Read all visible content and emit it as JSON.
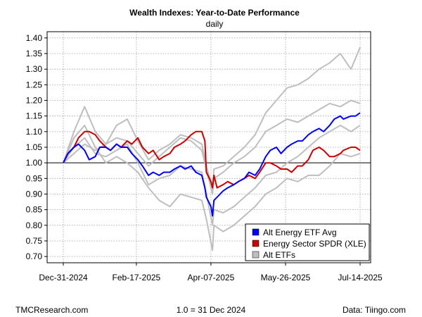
{
  "chart_data": {
    "type": "line",
    "title": "Wealth Indexes: Year-to-Date Performance",
    "subtitle": "daily",
    "x_tick_labels": [
      "Dec-31-2024",
      "Feb-17-2025",
      "Apr-07-2025",
      "May-26-2025",
      "Jul-14-2025"
    ],
    "x_ticks": [
      "2024-12-31",
      "2025-02-17",
      "2025-04-07",
      "2025-05-26",
      "2025-07-14"
    ],
    "xlim": [
      "2024-12-31",
      "2025-07-14"
    ],
    "y_ticks": [
      0.7,
      0.75,
      0.8,
      0.85,
      0.9,
      0.95,
      1.0,
      1.05,
      1.1,
      1.15,
      1.2,
      1.25,
      1.3,
      1.35,
      1.4
    ],
    "y_tick_labels": [
      "0.70",
      "0.75",
      "0.80",
      "0.85",
      "0.90",
      "0.95",
      "1.00",
      "1.05",
      "1.10",
      "1.15",
      "1.20",
      "1.25",
      "1.30",
      "1.35",
      "1.40"
    ],
    "ylim": [
      0.68,
      1.42
    ],
    "reference_line": 1.0,
    "grid": true,
    "legend_position": "bottom-right",
    "legend": [
      "Alt Energy ETF Avg",
      "Energy Sector SPDR (XLE)",
      "Alt ETFs"
    ],
    "series": [
      {
        "name": "Alt ETFs",
        "color": "#bebebe",
        "values": [
          [
            [
              "2024-12-31",
              1.0
            ],
            [
              "2025-01-07",
              1.08
            ],
            [
              "2025-01-14",
              1.12
            ],
            [
              "2025-01-21",
              1.05
            ],
            [
              "2025-01-28",
              1.0
            ],
            [
              "2025-02-04",
              1.02
            ],
            [
              "2025-02-11",
              1.0
            ],
            [
              "2025-02-18",
              0.97
            ],
            [
              "2025-02-25",
              0.92
            ],
            [
              "2025-03-04",
              0.88
            ],
            [
              "2025-03-11",
              0.86
            ],
            [
              "2025-03-18",
              0.9
            ],
            [
              "2025-03-25",
              0.89
            ],
            [
              "2025-04-01",
              0.88
            ],
            [
              "2025-04-04",
              0.82
            ],
            [
              "2025-04-08",
              0.72
            ],
            [
              "2025-04-09",
              0.8
            ],
            [
              "2025-04-15",
              0.78
            ],
            [
              "2025-04-22",
              0.8
            ],
            [
              "2025-04-29",
              0.83
            ],
            [
              "2025-05-06",
              0.86
            ],
            [
              "2025-05-13",
              0.9
            ],
            [
              "2025-05-20",
              0.92
            ],
            [
              "2025-05-27",
              0.95
            ],
            [
              "2025-06-03",
              0.94
            ],
            [
              "2025-06-10",
              0.96
            ],
            [
              "2025-06-17",
              0.96
            ],
            [
              "2025-06-24",
              0.99
            ],
            [
              "2025-07-01",
              1.03
            ],
            [
              "2025-07-08",
              1.02
            ],
            [
              "2025-07-14",
              1.03
            ]
          ],
          [
            [
              "2024-12-31",
              1.0
            ],
            [
              "2025-01-07",
              1.05
            ],
            [
              "2025-01-14",
              1.08
            ],
            [
              "2025-01-21",
              1.03
            ],
            [
              "2025-01-28",
              1.02
            ],
            [
              "2025-02-04",
              1.04
            ],
            [
              "2025-02-11",
              1.06
            ],
            [
              "2025-02-18",
              1.0
            ],
            [
              "2025-02-25",
              0.93
            ],
            [
              "2025-03-04",
              0.95
            ],
            [
              "2025-03-11",
              0.96
            ],
            [
              "2025-03-18",
              0.99
            ],
            [
              "2025-03-25",
              0.98
            ],
            [
              "2025-04-01",
              0.97
            ],
            [
              "2025-04-04",
              0.9
            ],
            [
              "2025-04-08",
              0.8
            ],
            [
              "2025-04-09",
              0.85
            ],
            [
              "2025-04-15",
              0.84
            ],
            [
              "2025-04-22",
              0.86
            ],
            [
              "2025-04-29",
              0.89
            ],
            [
              "2025-05-06",
              0.92
            ],
            [
              "2025-05-13",
              0.96
            ],
            [
              "2025-05-20",
              0.97
            ],
            [
              "2025-05-27",
              1.0
            ],
            [
              "2025-06-03",
              1.02
            ],
            [
              "2025-06-10",
              1.05
            ],
            [
              "2025-06-17",
              1.08
            ],
            [
              "2025-06-24",
              1.1
            ],
            [
              "2025-07-01",
              1.12
            ],
            [
              "2025-07-08",
              1.1
            ],
            [
              "2025-07-14",
              1.12
            ]
          ],
          [
            [
              "2024-12-31",
              1.0
            ],
            [
              "2025-01-07",
              1.03
            ],
            [
              "2025-01-14",
              1.06
            ],
            [
              "2025-01-21",
              1.04
            ],
            [
              "2025-01-28",
              1.06
            ],
            [
              "2025-02-04",
              1.08
            ],
            [
              "2025-02-11",
              1.07
            ],
            [
              "2025-02-18",
              1.03
            ],
            [
              "2025-02-25",
              0.99
            ],
            [
              "2025-03-04",
              1.02
            ],
            [
              "2025-03-11",
              1.05
            ],
            [
              "2025-03-18",
              1.08
            ],
            [
              "2025-03-25",
              1.07
            ],
            [
              "2025-04-01",
              1.04
            ],
            [
              "2025-04-04",
              0.98
            ],
            [
              "2025-04-08",
              0.9
            ],
            [
              "2025-04-09",
              0.95
            ],
            [
              "2025-04-15",
              0.97
            ],
            [
              "2025-04-22",
              1.0
            ],
            [
              "2025-04-29",
              1.02
            ],
            [
              "2025-05-06",
              1.05
            ],
            [
              "2025-05-13",
              1.1
            ],
            [
              "2025-05-20",
              1.12
            ],
            [
              "2025-05-27",
              1.14
            ],
            [
              "2025-06-03",
              1.13
            ],
            [
              "2025-06-10",
              1.15
            ],
            [
              "2025-06-17",
              1.17
            ],
            [
              "2025-06-24",
              1.19
            ],
            [
              "2025-07-01",
              1.18
            ],
            [
              "2025-07-08",
              1.2
            ],
            [
              "2025-07-14",
              1.19
            ]
          ],
          [
            [
              "2024-12-31",
              1.0
            ],
            [
              "2025-01-07",
              1.1
            ],
            [
              "2025-01-14",
              1.18
            ],
            [
              "2025-01-21",
              1.1
            ],
            [
              "2025-01-28",
              1.06
            ],
            [
              "2025-02-04",
              1.12
            ],
            [
              "2025-02-11",
              1.14
            ],
            [
              "2025-02-18",
              1.07
            ],
            [
              "2025-02-25",
              1.01
            ],
            [
              "2025-03-04",
              1.04
            ],
            [
              "2025-03-11",
              1.06
            ],
            [
              "2025-03-18",
              1.09
            ],
            [
              "2025-03-25",
              1.08
            ],
            [
              "2025-04-01",
              1.06
            ],
            [
              "2025-04-04",
              0.99
            ],
            [
              "2025-04-08",
              0.92
            ],
            [
              "2025-04-09",
              0.98
            ],
            [
              "2025-04-15",
              0.99
            ],
            [
              "2025-04-22",
              1.02
            ],
            [
              "2025-04-29",
              1.05
            ],
            [
              "2025-05-06",
              1.09
            ],
            [
              "2025-05-13",
              1.16
            ],
            [
              "2025-05-20",
              1.2
            ],
            [
              "2025-05-27",
              1.24
            ],
            [
              "2025-06-03",
              1.25
            ],
            [
              "2025-06-10",
              1.27
            ],
            [
              "2025-06-17",
              1.3
            ],
            [
              "2025-06-24",
              1.32
            ],
            [
              "2025-07-01",
              1.35
            ],
            [
              "2025-07-08",
              1.3
            ],
            [
              "2025-07-14",
              1.37
            ]
          ]
        ]
      },
      {
        "name": "Alt Energy ETF Avg",
        "color": "#0000ff",
        "values": [
          [
            "2024-12-31",
            1.0
          ],
          [
            "2025-01-03",
            1.03
          ],
          [
            "2025-01-07",
            1.05
          ],
          [
            "2025-01-10",
            1.06
          ],
          [
            "2025-01-14",
            1.04
          ],
          [
            "2025-01-17",
            1.01
          ],
          [
            "2025-01-21",
            1.02
          ],
          [
            "2025-01-24",
            1.05
          ],
          [
            "2025-01-28",
            1.05
          ],
          [
            "2025-01-31",
            1.04
          ],
          [
            "2025-02-04",
            1.06
          ],
          [
            "2025-02-07",
            1.05
          ],
          [
            "2025-02-11",
            1.05
          ],
          [
            "2025-02-14",
            1.03
          ],
          [
            "2025-02-18",
            1.01
          ],
          [
            "2025-02-21",
            0.99
          ],
          [
            "2025-02-25",
            0.96
          ],
          [
            "2025-02-28",
            0.97
          ],
          [
            "2025-03-04",
            0.96
          ],
          [
            "2025-03-07",
            0.97
          ],
          [
            "2025-03-11",
            0.97
          ],
          [
            "2025-03-14",
            0.98
          ],
          [
            "2025-03-18",
            0.99
          ],
          [
            "2025-03-21",
            0.98
          ],
          [
            "2025-03-25",
            0.99
          ],
          [
            "2025-03-28",
            0.97
          ],
          [
            "2025-04-01",
            0.96
          ],
          [
            "2025-04-03",
            0.92
          ],
          [
            "2025-04-04",
            0.89
          ],
          [
            "2025-04-07",
            0.86
          ],
          [
            "2025-04-08",
            0.83
          ],
          [
            "2025-04-09",
            0.88
          ],
          [
            "2025-04-11",
            0.89
          ],
          [
            "2025-04-15",
            0.91
          ],
          [
            "2025-04-18",
            0.92
          ],
          [
            "2025-04-22",
            0.93
          ],
          [
            "2025-04-25",
            0.94
          ],
          [
            "2025-04-29",
            0.95
          ],
          [
            "2025-05-02",
            0.97
          ],
          [
            "2025-05-06",
            0.96
          ],
          [
            "2025-05-09",
            0.98
          ],
          [
            "2025-05-13",
            1.02
          ],
          [
            "2025-05-16",
            1.04
          ],
          [
            "2025-05-20",
            1.05
          ],
          [
            "2025-05-23",
            1.03
          ],
          [
            "2025-05-27",
            1.05
          ],
          [
            "2025-05-30",
            1.06
          ],
          [
            "2025-06-03",
            1.07
          ],
          [
            "2025-06-06",
            1.07
          ],
          [
            "2025-06-10",
            1.09
          ],
          [
            "2025-06-13",
            1.1
          ],
          [
            "2025-06-17",
            1.11
          ],
          [
            "2025-06-20",
            1.1
          ],
          [
            "2025-06-24",
            1.12
          ],
          [
            "2025-06-27",
            1.14
          ],
          [
            "2025-07-01",
            1.15
          ],
          [
            "2025-07-03",
            1.14
          ],
          [
            "2025-07-08",
            1.15
          ],
          [
            "2025-07-11",
            1.15
          ],
          [
            "2025-07-14",
            1.16
          ]
        ]
      },
      {
        "name": "Energy Sector SPDR (XLE)",
        "color": "#cc0000",
        "values": [
          [
            "2024-12-31",
            1.0
          ],
          [
            "2025-01-03",
            1.03
          ],
          [
            "2025-01-07",
            1.05
          ],
          [
            "2025-01-10",
            1.08
          ],
          [
            "2025-01-14",
            1.1
          ],
          [
            "2025-01-17",
            1.1
          ],
          [
            "2025-01-21",
            1.09
          ],
          [
            "2025-01-24",
            1.07
          ],
          [
            "2025-01-28",
            1.05
          ],
          [
            "2025-01-31",
            1.04
          ],
          [
            "2025-02-04",
            1.06
          ],
          [
            "2025-02-07",
            1.05
          ],
          [
            "2025-02-11",
            1.07
          ],
          [
            "2025-02-14",
            1.06
          ],
          [
            "2025-02-18",
            1.08
          ],
          [
            "2025-02-21",
            1.05
          ],
          [
            "2025-02-25",
            1.03
          ],
          [
            "2025-02-28",
            1.04
          ],
          [
            "2025-03-04",
            1.01
          ],
          [
            "2025-03-07",
            1.02
          ],
          [
            "2025-03-11",
            1.03
          ],
          [
            "2025-03-14",
            1.05
          ],
          [
            "2025-03-18",
            1.06
          ],
          [
            "2025-03-21",
            1.07
          ],
          [
            "2025-03-25",
            1.09
          ],
          [
            "2025-03-28",
            1.1
          ],
          [
            "2025-04-01",
            1.1
          ],
          [
            "2025-04-03",
            1.07
          ],
          [
            "2025-04-04",
            0.97
          ],
          [
            "2025-04-07",
            0.94
          ],
          [
            "2025-04-08",
            0.92
          ],
          [
            "2025-04-09",
            0.96
          ],
          [
            "2025-04-11",
            0.92
          ],
          [
            "2025-04-15",
            0.93
          ],
          [
            "2025-04-18",
            0.94
          ],
          [
            "2025-04-22",
            0.93
          ],
          [
            "2025-04-25",
            0.94
          ],
          [
            "2025-04-29",
            0.95
          ],
          [
            "2025-05-02",
            0.96
          ],
          [
            "2025-05-06",
            0.95
          ],
          [
            "2025-05-09",
            0.97
          ],
          [
            "2025-05-13",
            1.0
          ],
          [
            "2025-05-16",
            1.0
          ],
          [
            "2025-05-20",
            0.99
          ],
          [
            "2025-05-23",
            0.98
          ],
          [
            "2025-05-27",
            0.98
          ],
          [
            "2025-05-30",
            0.97
          ],
          [
            "2025-06-03",
            0.99
          ],
          [
            "2025-06-06",
            0.99
          ],
          [
            "2025-06-10",
            1.01
          ],
          [
            "2025-06-13",
            1.04
          ],
          [
            "2025-06-17",
            1.05
          ],
          [
            "2025-06-20",
            1.04
          ],
          [
            "2025-06-24",
            1.02
          ],
          [
            "2025-06-27",
            1.02
          ],
          [
            "2025-07-01",
            1.03
          ],
          [
            "2025-07-03",
            1.04
          ],
          [
            "2025-07-08",
            1.05
          ],
          [
            "2025-07-11",
            1.05
          ],
          [
            "2025-07-14",
            1.04
          ]
        ]
      }
    ]
  },
  "footer": {
    "left": "TMCResearch.com",
    "center": "1.0 = 31 Dec 2024",
    "right": "Data: Tiingo.com"
  }
}
